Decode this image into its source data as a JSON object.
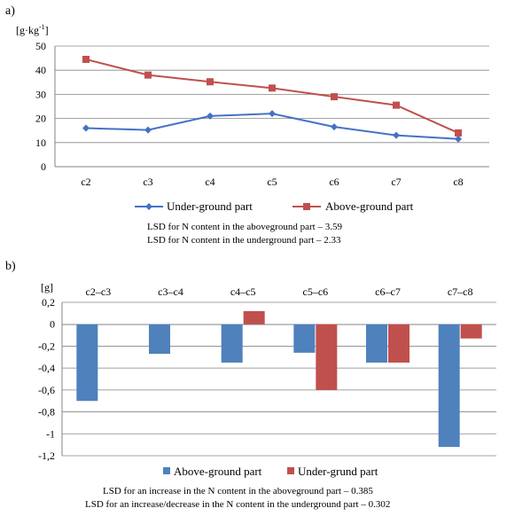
{
  "chart_data": [
    {
      "panel_label": "a)",
      "type": "line",
      "ylabel_pre": "[g·kg",
      "ylabel_sup": "-1",
      "ylabel_post": "]",
      "categories": [
        "c2",
        "c3",
        "c4",
        "c5",
        "c6",
        "c7",
        "c8"
      ],
      "ylim": [
        0,
        50
      ],
      "yticks": [
        "0",
        "10",
        "20",
        "30",
        "40",
        "50"
      ],
      "grid": true,
      "legend_position": "bottom",
      "series": [
        {
          "name": "Under-ground part",
          "color": "#4472C4",
          "marker": "diamond",
          "values": [
            16,
            15.2,
            21,
            22,
            16.5,
            13,
            11.5
          ]
        },
        {
          "name": "Above-ground part",
          "color": "#C0504D",
          "marker": "square",
          "values": [
            44.5,
            38,
            35.2,
            32.6,
            29,
            25.5,
            14
          ]
        }
      ],
      "notes": [
        "LSD for N content in the aboveground part – 3.59",
        "LSD for N content in the underground part – 2.33"
      ]
    },
    {
      "panel_label": "b)",
      "type": "bar",
      "ylabel": "[g]",
      "categories": [
        "c2–c3",
        "c3–c4",
        "c4–c5",
        "c5–c6",
        "c6–c7",
        "c7–c8"
      ],
      "ylim": [
        -1.2,
        0.2
      ],
      "yticks": [
        "0,2",
        "0",
        "-0,2",
        "-0,4",
        "-0,6",
        "-0,8",
        "-1",
        "-1,2"
      ],
      "grid": true,
      "legend_position": "bottom",
      "series": [
        {
          "name": "Above-ground part",
          "color": "#4F81BD",
          "values": [
            -0.7,
            -0.27,
            -0.35,
            -0.26,
            -0.35,
            -1.12
          ]
        },
        {
          "name": "Under-grund part",
          "color": "#C0504D",
          "values": [
            null,
            null,
            0.12,
            -0.6,
            -0.35,
            -0.13
          ]
        }
      ],
      "notes": [
        "LSD for an increase in the N content in the aboveground part – 0.385",
        "LSD for an increase/decrease in the N content in the underground part – 0.302"
      ]
    }
  ]
}
